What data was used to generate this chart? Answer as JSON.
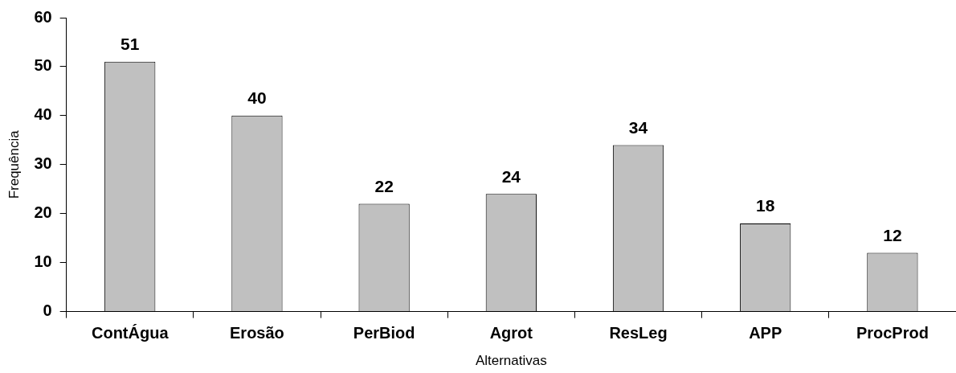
{
  "chart_data": {
    "type": "bar",
    "xlabel": "Alternativas",
    "ylabel": "Frequência",
    "categories": [
      "ContÁgua",
      "Erosão",
      "PerBiod",
      "Agrot",
      "ResLeg",
      "APP",
      "ProcProd"
    ],
    "values": [
      51,
      40,
      22,
      24,
      34,
      18,
      12
    ],
    "color": "#c0c0c0",
    "ylim": [
      0,
      60
    ],
    "yticks": [
      0,
      10,
      20,
      30,
      40,
      50,
      60
    ],
    "grid": false,
    "legend": false,
    "data_labels": true
  }
}
